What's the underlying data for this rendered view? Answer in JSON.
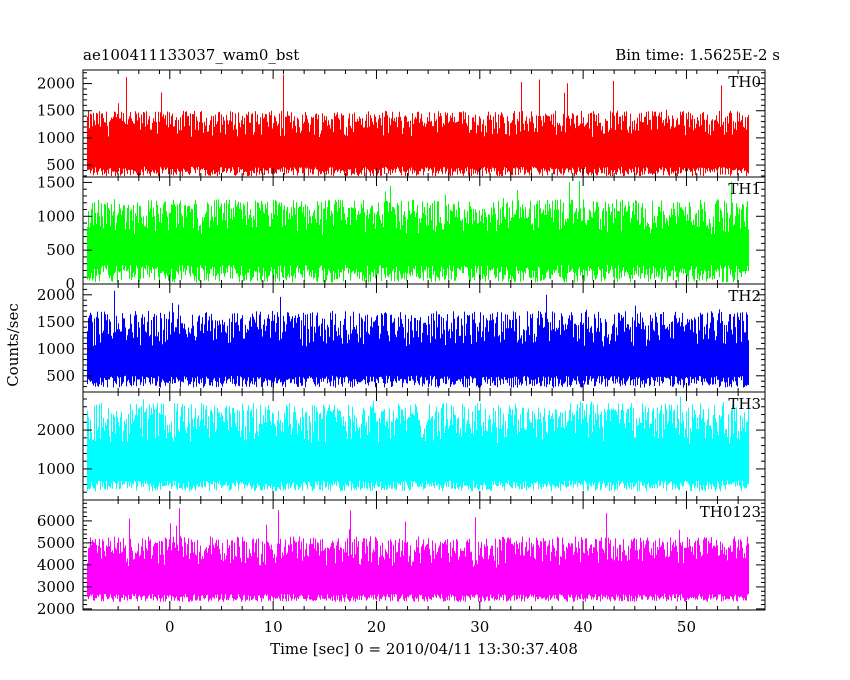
{
  "header": {
    "left_title": "ae100411133037_wam0_bst",
    "right_title": "Bin time: 1.5625E-2 s"
  },
  "chart_data": {
    "type": "line",
    "title": "ae100411133037_wam0_bst",
    "subtitle": "Bin time: 1.5625E-2 s",
    "xlabel": "Time [sec] 0 = 2010/04/11 13:30:37.408",
    "ylabel": "Counts/sec",
    "xlim": [
      -8.4,
      57.6
    ],
    "x_ticks": [
      0,
      10,
      20,
      30,
      40,
      50
    ],
    "x_data_range": [
      -8,
      56
    ],
    "bin_time": 0.015625,
    "panels": [
      {
        "name": "TH0",
        "color": "#ff0000",
        "ylim": [
          280,
          2250
        ],
        "y_ticks": [
          500,
          1000,
          1500,
          2000
        ],
        "typical_min": 400,
        "typical_max": 1500,
        "base": 380,
        "mean": 950,
        "spike_max": 2220,
        "bottom_fluctuation": 90
      },
      {
        "name": "TH1",
        "color": "#00ff00",
        "ylim": [
          0,
          1580
        ],
        "y_ticks": [
          0,
          500,
          1000,
          1500
        ],
        "typical_min": 100,
        "typical_max": 1250,
        "base": 150,
        "mean": 650,
        "spike_max": 1540,
        "bottom_fluctuation": 130
      },
      {
        "name": "TH2",
        "color": "#0000ff",
        "ylim": [
          200,
          2200
        ],
        "y_ticks": [
          500,
          1000,
          1500,
          2000
        ],
        "typical_min": 300,
        "typical_max": 1700,
        "base": 390,
        "mean": 950,
        "spike_max": 2150,
        "bottom_fluctuation": 110
      },
      {
        "name": "TH3",
        "color": "#00ffff",
        "ylim": [
          200,
          2980
        ],
        "y_ticks": [
          1000,
          2000
        ],
        "typical_min": 500,
        "typical_max": 2700,
        "base": 560,
        "mean": 1500,
        "spike_max": 2900,
        "bottom_fluctuation": 140
      },
      {
        "name": "TH0123",
        "color": "#ff00ff",
        "ylim": [
          1950,
          6950
        ],
        "y_ticks": [
          2000,
          3000,
          4000,
          5000,
          6000
        ],
        "typical_min": 2300,
        "typical_max": 5300,
        "base": 2500,
        "mean": 3700,
        "spike_max": 6600,
        "bottom_fluctuation": 180
      }
    ],
    "grid": false,
    "legend": "none"
  }
}
